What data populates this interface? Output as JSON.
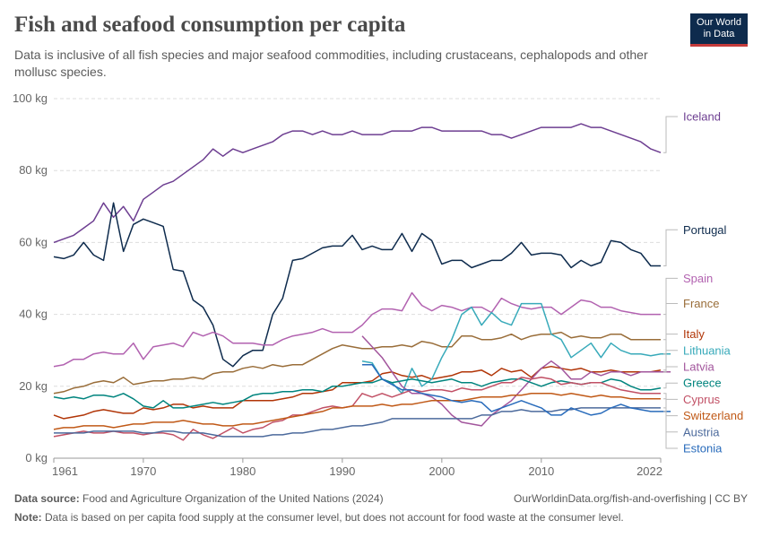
{
  "header": {
    "title": "Fish and seafood consumption per capita",
    "subtitle": "Data is inclusive of all fish species and major seafood commodities, including crustaceans, cephalopods and other mollusc species."
  },
  "logo": {
    "line1": "Our World",
    "line2": "in Data"
  },
  "footer": {
    "source_label": "Data source:",
    "source_text": "Food and Agriculture Organization of the United Nations (2024)",
    "url_text": "OurWorldinData.org/fish-and-overfishing | CC BY",
    "note_label": "Note:",
    "note_text": "Data is based on per capita food supply at the consumer level, but does not account for food waste at the consumer level."
  },
  "chart_data": {
    "type": "line",
    "xlim": [
      1961,
      2022
    ],
    "ylim": [
      0,
      100
    ],
    "x_ticks": [
      1961,
      1970,
      1980,
      1990,
      2000,
      2010,
      2022
    ],
    "y_ticks": [
      0,
      20,
      40,
      60,
      80,
      100
    ],
    "y_tick_labels": [
      "0 kg",
      "20 kg",
      "40 kg",
      "60 kg",
      "80 kg",
      "100 kg"
    ],
    "grid": true,
    "series": [
      {
        "name": "Iceland",
        "color": "#6d3e91",
        "x_start": 1961,
        "values": [
          60,
          61,
          62,
          64,
          66,
          71,
          67,
          70,
          66,
          72,
          74,
          76,
          77,
          79,
          81,
          83,
          86,
          84,
          86,
          85,
          86,
          87,
          88,
          90,
          91,
          91,
          90,
          91,
          90,
          90,
          91,
          90,
          90,
          90,
          91,
          91,
          91,
          92,
          92,
          91,
          91,
          91,
          91,
          91,
          90,
          90,
          89,
          90,
          91,
          92,
          92,
          92,
          92,
          93,
          92,
          92,
          91,
          90,
          89,
          88,
          86,
          85
        ]
      },
      {
        "name": "Portugal",
        "color": "#0e2b4d",
        "x_start": 1961,
        "values": [
          56,
          55.5,
          56.5,
          60,
          56.5,
          55,
          71,
          57.5,
          65,
          66.5,
          65.5,
          64.5,
          52.5,
          52,
          44,
          42,
          37,
          27.5,
          25.5,
          28.5,
          30,
          30,
          40,
          44.5,
          55,
          55.5,
          57,
          58.5,
          59,
          59,
          62,
          58,
          59,
          58,
          58,
          62.5,
          57.5,
          62.5,
          60.5,
          54,
          55,
          55,
          53,
          54,
          55,
          55,
          57,
          60,
          56.5,
          57,
          57,
          56.5,
          53,
          55,
          53.5,
          54.5,
          60.5,
          60,
          58,
          57,
          53.5,
          53.5
        ]
      },
      {
        "name": "Spain",
        "color": "#b262b0",
        "x_start": 1961,
        "values": [
          25.5,
          26,
          27.5,
          27.5,
          29,
          29.5,
          29,
          29,
          32,
          27.5,
          31,
          31.5,
          32,
          31,
          35,
          34,
          35,
          34,
          32,
          32,
          32,
          31.5,
          31.5,
          33,
          34,
          34.5,
          35,
          36,
          35,
          35,
          35,
          37,
          40,
          41.5,
          41.5,
          41,
          46,
          42.5,
          41,
          42.5,
          42,
          41,
          42,
          42,
          40.5,
          44.5,
          43,
          42,
          41.5,
          42,
          42,
          40,
          42,
          44,
          43.5,
          42,
          42,
          41,
          40.5,
          40,
          40,
          40
        ]
      },
      {
        "name": "France",
        "color": "#996d39",
        "x_start": 1961,
        "values": [
          18,
          18.5,
          19.5,
          20,
          21,
          21.5,
          21,
          22.5,
          20.5,
          21,
          21.5,
          21.5,
          22,
          22,
          22.5,
          22,
          23.5,
          24,
          24,
          25,
          25.5,
          25,
          26,
          25.5,
          26,
          26,
          27.5,
          29,
          30.5,
          31.5,
          31,
          30.5,
          30.5,
          31,
          31,
          31.5,
          31,
          32.5,
          32,
          31,
          31,
          34,
          34,
          33,
          33,
          33.5,
          34.5,
          33,
          34,
          34.5,
          34.5,
          35,
          33.5,
          34,
          33.5,
          33.5,
          34.5,
          34.5,
          33,
          33,
          33,
          33
        ]
      },
      {
        "name": "Italy",
        "color": "#b13507",
        "x_start": 1961,
        "values": [
          12,
          11,
          11.5,
          12,
          13,
          13.5,
          13,
          12.5,
          12.5,
          14,
          13.5,
          14,
          15,
          15,
          14,
          14.5,
          14,
          14,
          14,
          16,
          16,
          16,
          16,
          16.5,
          17,
          18,
          18,
          18.5,
          19,
          21,
          21,
          21,
          21.5,
          23.5,
          24,
          23,
          22.5,
          23,
          22,
          22.5,
          23,
          24,
          24,
          24.5,
          23,
          25,
          24,
          24.5,
          22.5,
          25,
          25.5,
          25,
          24.5,
          25,
          24,
          24,
          24.5,
          24,
          24,
          24,
          24,
          24.5
        ]
      },
      {
        "name": "Lithuania",
        "color": "#38aaba",
        "x_start": 1992,
        "values": [
          27,
          26.5,
          22,
          21,
          18,
          25,
          20,
          22,
          28,
          33,
          40,
          42,
          37,
          40.5,
          38,
          37,
          43,
          43,
          43,
          34.5,
          33,
          28,
          30,
          32,
          28,
          32,
          30,
          29,
          29,
          28.5,
          29,
          29
        ]
      },
      {
        "name": "Latvia",
        "color": "#a2559c",
        "x_start": 1992,
        "values": [
          34,
          31,
          28,
          24,
          20,
          18,
          18,
          17,
          15,
          12,
          10,
          9.5,
          9,
          12,
          14,
          16,
          19,
          22,
          25,
          27,
          25,
          22,
          22,
          24,
          23,
          24,
          24,
          23,
          24,
          24,
          24,
          24
        ]
      },
      {
        "name": "Greece",
        "color": "#00847e",
        "x_start": 1961,
        "values": [
          17,
          16.5,
          17,
          16.5,
          17.5,
          17.5,
          17,
          18,
          16.5,
          14.5,
          14,
          16,
          14,
          14,
          14.5,
          15,
          15.5,
          15,
          15.5,
          16,
          17.5,
          18,
          18,
          18.5,
          18.5,
          19,
          19,
          18.5,
          20,
          20,
          20.5,
          21,
          21,
          22,
          21,
          21.5,
          22,
          21.5,
          21,
          21.5,
          22,
          21,
          21,
          20,
          21,
          21.5,
          22,
          22,
          21,
          20,
          21,
          21.5,
          21,
          20.5,
          21,
          21,
          22,
          21.5,
          20,
          19,
          19,
          19.5
        ]
      },
      {
        "name": "Cyprus",
        "color": "#c15065",
        "x_start": 1961,
        "values": [
          6,
          6.5,
          7,
          7.5,
          7,
          7,
          7.5,
          7,
          7,
          6.5,
          7,
          7,
          6.5,
          5,
          8,
          6.5,
          5.5,
          7,
          8.5,
          7,
          8,
          8.5,
          10,
          10.5,
          12,
          12,
          13,
          14,
          14.5,
          14,
          14.5,
          18,
          17,
          18,
          17,
          18,
          19,
          18.5,
          19,
          19,
          18.5,
          19.5,
          19,
          19,
          20,
          21,
          21,
          22.5,
          22,
          22.5,
          22,
          20.5,
          21,
          20.5,
          21,
          21,
          20,
          19,
          18.5,
          18,
          18,
          18
        ]
      },
      {
        "name": "Switzerland",
        "color": "#c05917",
        "x_start": 1961,
        "values": [
          8,
          8.5,
          8.5,
          9,
          9,
          9,
          8.5,
          9,
          9.5,
          9.5,
          10,
          10,
          10,
          10.5,
          10,
          9.5,
          9.5,
          9,
          9,
          9.5,
          9.5,
          10,
          10.5,
          11,
          11.5,
          12,
          12.5,
          13,
          14,
          14,
          14.5,
          14.5,
          14.5,
          15,
          14.5,
          15,
          15,
          15.5,
          16,
          16,
          16,
          16,
          16.5,
          17,
          17,
          17,
          17.5,
          17.5,
          18,
          18,
          18,
          17.5,
          18,
          17.5,
          17,
          17.5,
          17,
          17,
          16.5,
          16.5,
          16.5,
          16.5
        ]
      },
      {
        "name": "Austria",
        "color": "#4c6a9c",
        "x_start": 1961,
        "values": [
          7,
          7,
          7,
          7,
          7.5,
          7.5,
          7.5,
          7.5,
          7.5,
          7,
          7,
          7.5,
          7.5,
          7,
          7,
          7,
          6.5,
          6,
          6,
          6,
          6,
          6,
          6.5,
          6.5,
          7,
          7,
          7.5,
          8,
          8,
          8.5,
          9,
          9,
          9.5,
          10,
          11,
          11,
          11,
          11,
          11,
          11,
          11,
          11,
          11,
          12,
          12,
          13,
          13,
          13.5,
          13,
          13,
          13,
          13.5,
          13.5,
          14,
          14,
          14,
          14,
          14,
          14,
          14,
          14,
          14
        ]
      },
      {
        "name": "Estonia",
        "color": "#286bbb",
        "x_start": 1992,
        "values": [
          26,
          26,
          22,
          20.5,
          19,
          19,
          18,
          17.5,
          17,
          16,
          15.5,
          16,
          15.5,
          13,
          14,
          15,
          16,
          15,
          14,
          12,
          12,
          14,
          13,
          12,
          12.5,
          14,
          15,
          14,
          13.5,
          13,
          13,
          13
        ]
      }
    ]
  },
  "label_lines": [
    {
      "series": "Iceland",
      "text": "Iceland",
      "value": 85
    },
    {
      "series": "Portugal",
      "text": "Portugal",
      "value": 53.5
    },
    {
      "series": "Spain",
      "text": "Spain",
      "value": 40
    },
    {
      "series": "France",
      "text": "France",
      "value": 33
    },
    {
      "series": "Italy",
      "text": "Italy",
      "value": 24.5
    },
    {
      "series": "Lithuania",
      "text": "Lithuania",
      "value": 29
    },
    {
      "series": "Latvia",
      "text": "Latvia",
      "value": 24
    },
    {
      "series": "Greece",
      "text": "Greece",
      "value": 19.5
    },
    {
      "series": "Cyprus",
      "text": "Cyprus",
      "value": 18
    },
    {
      "series": "Switzerland",
      "text": "Switzerland",
      "value": 16.5
    },
    {
      "series": "Austria",
      "text": "Austria",
      "value": 14
    },
    {
      "series": "Estonia",
      "text": "Estonia",
      "value": 13
    }
  ]
}
